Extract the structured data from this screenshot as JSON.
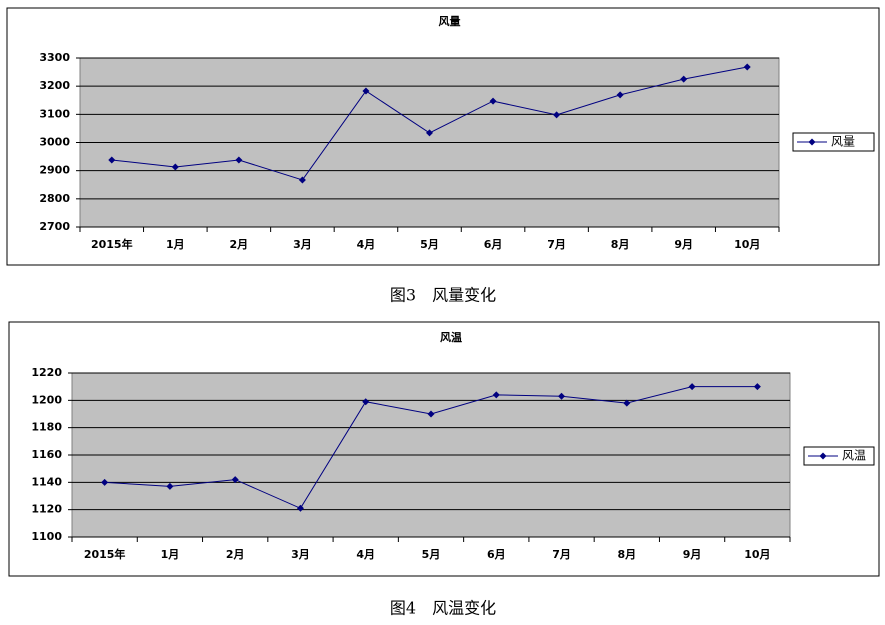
{
  "chart_data": [
    {
      "type": "line",
      "title": "风量",
      "caption": "图3　风量变化",
      "categories": [
        "2015年",
        "1月",
        "2月",
        "3月",
        "4月",
        "5月",
        "6月",
        "7月",
        "8月",
        "9月",
        "10月"
      ],
      "series": [
        {
          "name": "风量",
          "color": "#000080",
          "values": [
            2938,
            2913,
            2938,
            2867,
            3183,
            3034,
            3147,
            3098,
            3169,
            3225,
            3268
          ]
        }
      ],
      "ylim": [
        2700,
        3300
      ],
      "yticks": [
        2700,
        2800,
        2900,
        3000,
        3100,
        3200,
        3300
      ],
      "grid": true,
      "legend": "right"
    },
    {
      "type": "line",
      "title": "风温",
      "caption": "图4　风温变化",
      "categories": [
        "2015年",
        "1月",
        "2月",
        "3月",
        "4月",
        "5月",
        "6月",
        "7月",
        "8月",
        "9月",
        "10月"
      ],
      "series": [
        {
          "name": "风温",
          "color": "#000080",
          "values": [
            1140,
            1137,
            1142,
            1121,
            1199,
            1190,
            1204,
            1203,
            1198,
            1210,
            1210
          ]
        }
      ],
      "ylim": [
        1100,
        1220
      ],
      "yticks": [
        1100,
        1120,
        1140,
        1160,
        1180,
        1200,
        1220
      ],
      "grid": true,
      "legend": "right"
    }
  ]
}
